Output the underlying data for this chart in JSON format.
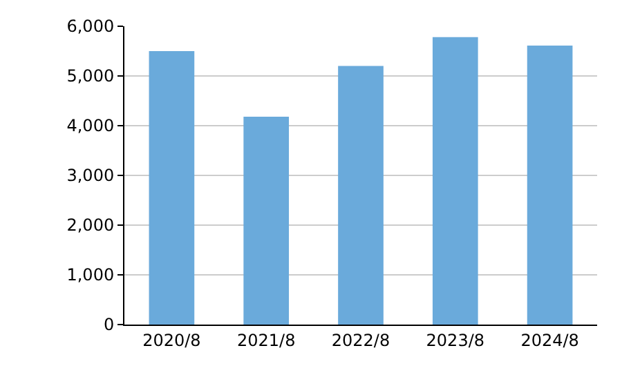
{
  "chart_data": {
    "type": "bar",
    "categories": [
      "2020/8",
      "2021/8",
      "2022/8",
      "2023/8",
      "2024/8"
    ],
    "values": [
      5500,
      4180,
      5200,
      5780,
      5610
    ],
    "color": "#6aaadb",
    "ylim": [
      0,
      6000
    ],
    "yticks": [
      {
        "value": 0,
        "label": "0"
      },
      {
        "value": 1000,
        "label": "1,000"
      },
      {
        "value": 2000,
        "label": "2,000"
      },
      {
        "value": 3000,
        "label": "3,000"
      },
      {
        "value": 4000,
        "label": "4,000"
      },
      {
        "value": 5000,
        "label": "5,000"
      },
      {
        "value": 6000,
        "label": "6,000"
      }
    ],
    "grid": "y"
  }
}
